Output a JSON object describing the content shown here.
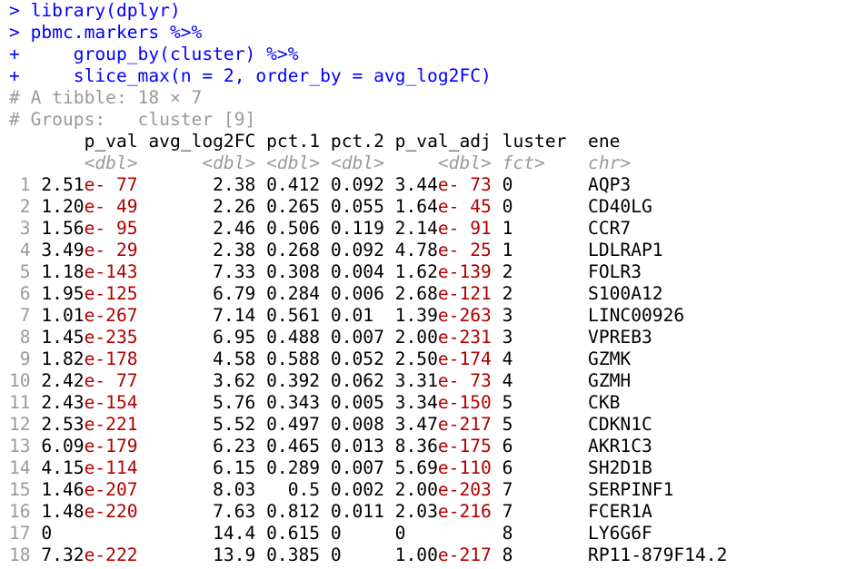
{
  "console": {
    "commands": [
      {
        "prompt": ">",
        "code": " library(dplyr)"
      },
      {
        "prompt": ">",
        "code": " pbmc.markers %>%"
      },
      {
        "prompt": "+",
        "code": "     group_by(cluster) %>%"
      },
      {
        "prompt": "+",
        "code": "     slice_max(n = 2, order_by = avg_log2FC)"
      }
    ],
    "comments": [
      "# A tibble: 18 × 7",
      "# Groups:   cluster [9]"
    ],
    "columns": [
      "p_val",
      "avg_log2FC",
      "pct.1",
      "pct.2",
      "p_val_adj",
      "cluster",
      "gene"
    ],
    "types": [
      "<dbl>",
      "<dbl>",
      "<dbl>",
      "<dbl>",
      "<dbl>",
      "<fct>",
      "<chr>"
    ],
    "rows": [
      {
        "n": "1",
        "p_val": [
          "2.51",
          "e- 77"
        ],
        "avg_log2FC": "2.38",
        "pct_1": "0.412",
        "pct_2": "0.092",
        "p_val_adj": [
          "3.44",
          "e- 73"
        ],
        "cluster": "0",
        "gene": "AQP3"
      },
      {
        "n": "2",
        "p_val": [
          "1.20",
          "e- 49"
        ],
        "avg_log2FC": "2.26",
        "pct_1": "0.265",
        "pct_2": "0.055",
        "p_val_adj": [
          "1.64",
          "e- 45"
        ],
        "cluster": "0",
        "gene": "CD40LG"
      },
      {
        "n": "3",
        "p_val": [
          "1.56",
          "e- 95"
        ],
        "avg_log2FC": "2.46",
        "pct_1": "0.506",
        "pct_2": "0.119",
        "p_val_adj": [
          "2.14",
          "e- 91"
        ],
        "cluster": "1",
        "gene": "CCR7"
      },
      {
        "n": "4",
        "p_val": [
          "3.49",
          "e- 29"
        ],
        "avg_log2FC": "2.38",
        "pct_1": "0.268",
        "pct_2": "0.092",
        "p_val_adj": [
          "4.78",
          "e- 25"
        ],
        "cluster": "1",
        "gene": "LDLRAP1"
      },
      {
        "n": "5",
        "p_val": [
          "1.18",
          "e-143"
        ],
        "avg_log2FC": "7.33",
        "pct_1": "0.308",
        "pct_2": "0.004",
        "p_val_adj": [
          "1.62",
          "e-139"
        ],
        "cluster": "2",
        "gene": "FOLR3"
      },
      {
        "n": "6",
        "p_val": [
          "1.95",
          "e-125"
        ],
        "avg_log2FC": "6.79",
        "pct_1": "0.284",
        "pct_2": "0.006",
        "p_val_adj": [
          "2.68",
          "e-121"
        ],
        "cluster": "2",
        "gene": "S100A12"
      },
      {
        "n": "7",
        "p_val": [
          "1.01",
          "e-267"
        ],
        "avg_log2FC": "7.14",
        "pct_1": "0.561",
        "pct_2": "0.01",
        "p_val_adj": [
          "1.39",
          "e-263"
        ],
        "cluster": "3",
        "gene": "LINC00926"
      },
      {
        "n": "8",
        "p_val": [
          "1.45",
          "e-235"
        ],
        "avg_log2FC": "6.95",
        "pct_1": "0.488",
        "pct_2": "0.007",
        "p_val_adj": [
          "2.00",
          "e-231"
        ],
        "cluster": "3",
        "gene": "VPREB3"
      },
      {
        "n": "9",
        "p_val": [
          "1.82",
          "e-178"
        ],
        "avg_log2FC": "4.58",
        "pct_1": "0.588",
        "pct_2": "0.052",
        "p_val_adj": [
          "2.50",
          "e-174"
        ],
        "cluster": "4",
        "gene": "GZMK"
      },
      {
        "n": "10",
        "p_val": [
          "2.42",
          "e- 77"
        ],
        "avg_log2FC": "3.62",
        "pct_1": "0.392",
        "pct_2": "0.062",
        "p_val_adj": [
          "3.31",
          "e- 73"
        ],
        "cluster": "4",
        "gene": "GZMH"
      },
      {
        "n": "11",
        "p_val": [
          "2.43",
          "e-154"
        ],
        "avg_log2FC": "5.76",
        "pct_1": "0.343",
        "pct_2": "0.005",
        "p_val_adj": [
          "3.34",
          "e-150"
        ],
        "cluster": "5",
        "gene": "CKB"
      },
      {
        "n": "12",
        "p_val": [
          "2.53",
          "e-221"
        ],
        "avg_log2FC": "5.52",
        "pct_1": "0.497",
        "pct_2": "0.008",
        "p_val_adj": [
          "3.47",
          "e-217"
        ],
        "cluster": "5",
        "gene": "CDKN1C"
      },
      {
        "n": "13",
        "p_val": [
          "6.09",
          "e-179"
        ],
        "avg_log2FC": "6.23",
        "pct_1": "0.465",
        "pct_2": "0.013",
        "p_val_adj": [
          "8.36",
          "e-175"
        ],
        "cluster": "6",
        "gene": "AKR1C3"
      },
      {
        "n": "14",
        "p_val": [
          "4.15",
          "e-114"
        ],
        "avg_log2FC": "6.15",
        "pct_1": "0.289",
        "pct_2": "0.007",
        "p_val_adj": [
          "5.69",
          "e-110"
        ],
        "cluster": "6",
        "gene": "SH2D1B"
      },
      {
        "n": "15",
        "p_val": [
          "1.46",
          "e-207"
        ],
        "avg_log2FC": "8.03",
        "pct_1": "0.5",
        "pct_2": "0.002",
        "p_val_adj": [
          "2.00",
          "e-203"
        ],
        "cluster": "7",
        "gene": "SERPINF1"
      },
      {
        "n": "16",
        "p_val": [
          "1.48",
          "e-220"
        ],
        "avg_log2FC": "7.63",
        "pct_1": "0.812",
        "pct_2": "0.011",
        "p_val_adj": [
          "2.03",
          "e-216"
        ],
        "cluster": "7",
        "gene": "FCER1A"
      },
      {
        "n": "17",
        "p_val": [
          "0",
          ""
        ],
        "avg_log2FC": "14.4",
        "pct_1": "0.615",
        "pct_2": "0",
        "p_val_adj": [
          "0",
          ""
        ],
        "cluster": "8",
        "gene": "LY6G6F"
      },
      {
        "n": "18",
        "p_val": [
          "7.32",
          "e-222"
        ],
        "avg_log2FC": "13.9",
        "pct_1": "0.385",
        "pct_2": "0",
        "p_val_adj": [
          "1.00",
          "e-217"
        ],
        "cluster": "8",
        "gene": "RP11-879F14.2"
      }
    ]
  }
}
